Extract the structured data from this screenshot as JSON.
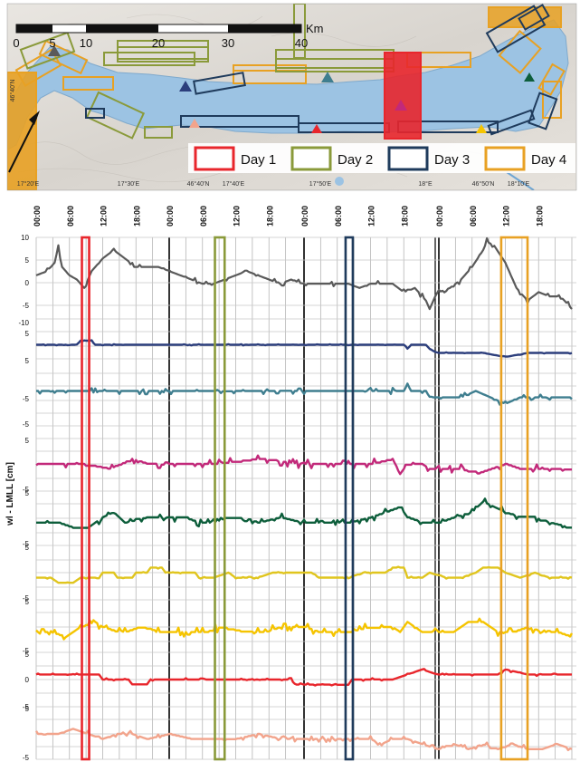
{
  "map": {
    "scalebar": {
      "labels": [
        "0",
        "5",
        "10",
        "20",
        "30",
        "40"
      ],
      "unit": "Km"
    },
    "lon_ticks": [
      "17°20'E",
      "17°30'E",
      "17°40'E",
      "17°50'E",
      "18°E",
      "18°10'E"
    ],
    "lat_ticks": [
      "46°40'N",
      "46°40'N",
      "46°50'N"
    ],
    "legend": [
      {
        "label": "Day 1",
        "color": "#e8262c"
      },
      {
        "label": "Day 2",
        "color": "#8a9a3a"
      },
      {
        "label": "Day 3",
        "color": "#1f3b5c"
      },
      {
        "label": "Day 4",
        "color": "#e8a123"
      }
    ],
    "station_colors": [
      "#5a5a5a",
      "#2c3e7c",
      "#3f7e8f",
      "#c2297a",
      "#0d5e3b",
      "#e0c51e",
      "#f5c400",
      "#e8262c",
      "#f2a48c"
    ]
  },
  "chart_data": {
    "type": "line",
    "ylabel": "wl - LMLL [cm]",
    "time_ticks": [
      "00:00",
      "06:00",
      "12:00",
      "18:00",
      "00:00",
      "06:00",
      "12:00",
      "18:00",
      "00:00",
      "06:00",
      "12:00",
      "18:00",
      "00:00",
      "06:00",
      "12:00",
      "18:00"
    ],
    "time_unit_hours": 6,
    "panels": [
      {
        "color": "#5a5a5a",
        "ylim": [
          -10,
          10
        ],
        "yticks": [
          "10",
          "5",
          "0",
          "-5",
          "-10"
        ],
        "keys": [
          [
            0,
            1
          ],
          [
            3,
            2
          ],
          [
            5,
            4
          ],
          [
            6,
            8
          ],
          [
            7,
            3
          ],
          [
            9,
            1
          ],
          [
            11,
            0
          ],
          [
            13,
            -2
          ],
          [
            15,
            2
          ],
          [
            18,
            5
          ],
          [
            21,
            7
          ],
          [
            24,
            5
          ],
          [
            27,
            3
          ],
          [
            30,
            3
          ],
          [
            33,
            3
          ],
          [
            36,
            2
          ],
          [
            39,
            1
          ],
          [
            42,
            0
          ],
          [
            45,
            -1
          ],
          [
            48,
            -1
          ],
          [
            51,
            0
          ],
          [
            54,
            1
          ],
          [
            57,
            2
          ],
          [
            60,
            1
          ],
          [
            63,
            0
          ],
          [
            66,
            -1
          ],
          [
            69,
            0
          ],
          [
            72,
            -1
          ],
          [
            75,
            -1
          ],
          [
            78,
            -1
          ],
          [
            81,
            -1
          ],
          [
            84,
            -1
          ],
          [
            87,
            -2
          ],
          [
            90,
            -1
          ],
          [
            93,
            -1
          ],
          [
            96,
            -1
          ],
          [
            99,
            -3
          ],
          [
            102,
            -2
          ],
          [
            105,
            -5
          ],
          [
            106,
            -7
          ],
          [
            108,
            -3
          ],
          [
            111,
            -2
          ],
          [
            114,
            0
          ],
          [
            117,
            3
          ],
          [
            120,
            7
          ],
          [
            121,
            9
          ],
          [
            123,
            8
          ],
          [
            126,
            4
          ],
          [
            129,
            -2
          ],
          [
            132,
            -5
          ],
          [
            135,
            -3
          ],
          [
            138,
            -4
          ],
          [
            141,
            -4
          ],
          [
            144,
            -7
          ]
        ],
        "noise": 0.8
      },
      {
        "color": "#2c3e7c",
        "ylim": [
          -5,
          5
        ],
        "yticks": [
          "5",
          "-5"
        ],
        "keys": [
          [
            0,
            2
          ],
          [
            11,
            2
          ],
          [
            12,
            3
          ],
          [
            15,
            3
          ],
          [
            16,
            2
          ],
          [
            24,
            2
          ],
          [
            48,
            2
          ],
          [
            99,
            2
          ],
          [
            100,
            1
          ],
          [
            101,
            2
          ],
          [
            105,
            2
          ],
          [
            106,
            1
          ],
          [
            108,
            0
          ],
          [
            114,
            0
          ],
          [
            120,
            0
          ],
          [
            126,
            -1
          ],
          [
            132,
            0
          ],
          [
            144,
            0
          ]
        ],
        "noise": 0.15
      },
      {
        "color": "#3f7e8f",
        "ylim": [
          -5,
          5
        ],
        "yticks": [
          "5",
          "-5"
        ],
        "keys": [
          [
            0,
            0
          ],
          [
            48,
            0
          ],
          [
            99,
            0
          ],
          [
            100,
            1
          ],
          [
            101,
            0
          ],
          [
            105,
            0
          ],
          [
            106,
            -1
          ],
          [
            110,
            -1
          ],
          [
            114,
            -1
          ],
          [
            118,
            0
          ],
          [
            122,
            -1
          ],
          [
            126,
            -2
          ],
          [
            130,
            -1
          ],
          [
            136,
            -1
          ],
          [
            144,
            -1
          ]
        ],
        "noise": 0.5
      },
      {
        "color": "#c2297a",
        "ylim": [
          -5,
          5
        ],
        "yticks": [
          "5",
          "-5"
        ],
        "keys": [
          [
            0,
            0
          ],
          [
            12,
            0
          ],
          [
            20,
            -1
          ],
          [
            26,
            1
          ],
          [
            30,
            0
          ],
          [
            40,
            0
          ],
          [
            48,
            0
          ],
          [
            60,
            1
          ],
          [
            72,
            0
          ],
          [
            90,
            0
          ],
          [
            96,
            1
          ],
          [
            98,
            -2
          ],
          [
            100,
            0
          ],
          [
            104,
            0
          ],
          [
            106,
            -1
          ],
          [
            110,
            -1
          ],
          [
            114,
            -1
          ],
          [
            118,
            -2
          ],
          [
            122,
            -1
          ],
          [
            126,
            0
          ],
          [
            130,
            -1
          ],
          [
            136,
            -1
          ],
          [
            144,
            -1
          ]
        ],
        "noise": 0.9
      },
      {
        "color": "#0d5e3b",
        "ylim": [
          -5,
          5
        ],
        "yticks": [
          "5",
          "-5"
        ],
        "keys": [
          [
            0,
            -1
          ],
          [
            6,
            -1
          ],
          [
            10,
            -2
          ],
          [
            14,
            -2
          ],
          [
            18,
            0
          ],
          [
            21,
            1
          ],
          [
            24,
            -1
          ],
          [
            30,
            0
          ],
          [
            36,
            0
          ],
          [
            40,
            0
          ],
          [
            44,
            -1
          ],
          [
            48,
            -1
          ],
          [
            52,
            0
          ],
          [
            56,
            0
          ],
          [
            60,
            -1
          ],
          [
            66,
            0
          ],
          [
            72,
            -1
          ],
          [
            78,
            -1
          ],
          [
            84,
            -1
          ],
          [
            90,
            0
          ],
          [
            94,
            1
          ],
          [
            98,
            2
          ],
          [
            100,
            0
          ],
          [
            104,
            -1
          ],
          [
            108,
            -1
          ],
          [
            112,
            0
          ],
          [
            117,
            1
          ],
          [
            120,
            3
          ],
          [
            123,
            2
          ],
          [
            126,
            1
          ],
          [
            130,
            0
          ],
          [
            134,
            0
          ],
          [
            138,
            -1
          ],
          [
            144,
            -2
          ]
        ],
        "noise": 0.8
      },
      {
        "color": "#e0c51e",
        "ylim": [
          -5,
          5
        ],
        "yticks": [
          "5",
          "-5"
        ],
        "keys": [
          [
            0,
            -1
          ],
          [
            4,
            -1
          ],
          [
            6,
            -2
          ],
          [
            10,
            -2
          ],
          [
            12,
            -1
          ],
          [
            17,
            -1
          ],
          [
            18,
            0
          ],
          [
            21,
            0
          ],
          [
            22,
            -1
          ],
          [
            26,
            -1
          ],
          [
            27,
            0
          ],
          [
            30,
            0
          ],
          [
            31,
            1
          ],
          [
            34,
            1
          ],
          [
            35,
            0
          ],
          [
            43,
            0
          ],
          [
            44,
            -1
          ],
          [
            48,
            -1
          ],
          [
            52,
            0
          ],
          [
            54,
            -1
          ],
          [
            60,
            -1
          ],
          [
            64,
            0
          ],
          [
            74,
            0
          ],
          [
            76,
            -1
          ],
          [
            84,
            -1
          ],
          [
            88,
            0
          ],
          [
            94,
            0
          ],
          [
            96,
            1
          ],
          [
            99,
            1
          ],
          [
            100,
            -1
          ],
          [
            104,
            -1
          ],
          [
            106,
            0
          ],
          [
            110,
            -1
          ],
          [
            114,
            -1
          ],
          [
            118,
            0
          ],
          [
            120,
            1
          ],
          [
            124,
            1
          ],
          [
            126,
            0
          ],
          [
            130,
            -1
          ],
          [
            134,
            0
          ],
          [
            138,
            -1
          ],
          [
            144,
            -1
          ]
        ],
        "noise": 0.2
      },
      {
        "color": "#f5c400",
        "ylim": [
          -5,
          5
        ],
        "yticks": [
          "5",
          "-5"
        ],
        "keys": [
          [
            0,
            -1
          ],
          [
            4,
            -1
          ],
          [
            8,
            -2
          ],
          [
            12,
            0
          ],
          [
            16,
            1
          ],
          [
            18,
            0
          ],
          [
            22,
            -1
          ],
          [
            24,
            -1
          ],
          [
            28,
            0
          ],
          [
            34,
            -1
          ],
          [
            40,
            -1
          ],
          [
            46,
            -1
          ],
          [
            50,
            0
          ],
          [
            56,
            -1
          ],
          [
            62,
            -1
          ],
          [
            66,
            0
          ],
          [
            72,
            0
          ],
          [
            76,
            -1
          ],
          [
            84,
            -1
          ],
          [
            90,
            0
          ],
          [
            96,
            0
          ],
          [
            98,
            -1
          ],
          [
            100,
            1
          ],
          [
            104,
            -1
          ],
          [
            108,
            -1
          ],
          [
            112,
            -1
          ],
          [
            116,
            1
          ],
          [
            120,
            1
          ],
          [
            124,
            -1
          ],
          [
            128,
            -1
          ],
          [
            132,
            0
          ],
          [
            136,
            -1
          ],
          [
            140,
            -1
          ],
          [
            144,
            -2
          ]
        ],
        "noise": 0.9
      },
      {
        "color": "#e8262c",
        "ylim": [
          -5,
          5
        ],
        "yticks": [
          "5",
          "0",
          "-5"
        ],
        "keys": [
          [
            0,
            1
          ],
          [
            17,
            1
          ],
          [
            18,
            0
          ],
          [
            25,
            0
          ],
          [
            26,
            -1
          ],
          [
            30,
            -1
          ],
          [
            31,
            0
          ],
          [
            48,
            0
          ],
          [
            69,
            0
          ],
          [
            70,
            -1
          ],
          [
            84,
            -1
          ],
          [
            85,
            0
          ],
          [
            96,
            0
          ],
          [
            100,
            1
          ],
          [
            104,
            2
          ],
          [
            108,
            1
          ],
          [
            112,
            1
          ],
          [
            116,
            1
          ],
          [
            120,
            1
          ],
          [
            124,
            1
          ],
          [
            126,
            2
          ],
          [
            132,
            1
          ],
          [
            138,
            1
          ],
          [
            144,
            1
          ]
        ],
        "noise": 0.3
      },
      {
        "color": "#f2a48c",
        "ylim": [
          -5,
          5
        ],
        "yticks": [
          "5",
          "-5"
        ],
        "keys": [
          [
            0,
            0
          ],
          [
            6,
            0
          ],
          [
            10,
            1
          ],
          [
            14,
            0
          ],
          [
            18,
            -1
          ],
          [
            22,
            0
          ],
          [
            26,
            0
          ],
          [
            30,
            -1
          ],
          [
            36,
            0
          ],
          [
            42,
            -1
          ],
          [
            48,
            -1
          ],
          [
            54,
            -1
          ],
          [
            60,
            0
          ],
          [
            66,
            -1
          ],
          [
            72,
            -1
          ],
          [
            78,
            -1
          ],
          [
            84,
            -1
          ],
          [
            90,
            -1
          ],
          [
            93,
            -2
          ],
          [
            96,
            -1
          ],
          [
            100,
            -1
          ],
          [
            104,
            -2
          ],
          [
            108,
            -3
          ],
          [
            112,
            -2
          ],
          [
            116,
            -3
          ],
          [
            120,
            -2
          ],
          [
            124,
            -3
          ],
          [
            128,
            -2
          ],
          [
            132,
            -3
          ],
          [
            136,
            -3
          ],
          [
            140,
            -2
          ],
          [
            144,
            -3
          ]
        ],
        "noise": 0.6
      }
    ],
    "day_boxes": [
      {
        "label": "Day 1",
        "color": "#e8262c",
        "start_hours": 16.5,
        "end_hours": 18
      },
      {
        "label": "Day 2",
        "color": "#8a9a3a",
        "start_hours": 64.5,
        "end_hours": 68
      },
      {
        "label": "Day 3",
        "color": "#1f3b5c",
        "start_hours": 111,
        "end_hours": 113.5
      },
      {
        "label": "Day 4",
        "color": "#e8a123",
        "start_hours": 166.5,
        "end_hours": 176
      }
    ]
  }
}
